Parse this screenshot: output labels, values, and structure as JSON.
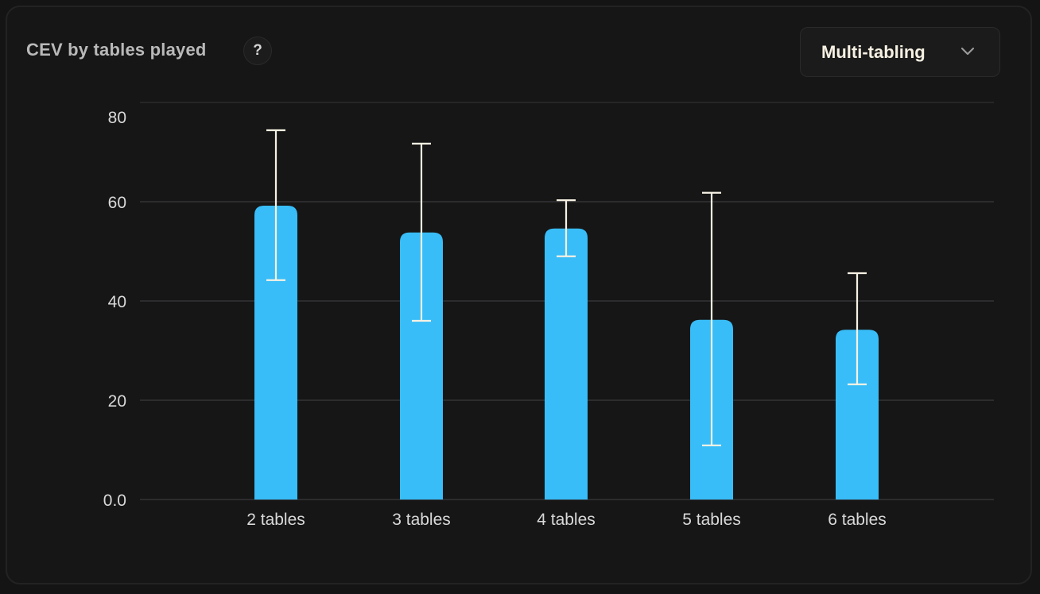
{
  "card": {
    "title": "CEV by tables played",
    "help_label": "?",
    "dropdown": {
      "selected": "Multi-tabling",
      "icon": "chevron-down-icon"
    }
  },
  "colors": {
    "background": "#161616",
    "bar": "#38bdf8",
    "error_bar": "#f6f1e3",
    "grid": "#2c2c2e",
    "text": "#d9d9d9"
  },
  "chart_data": {
    "type": "bar",
    "title": "CEV by tables played",
    "xlabel": "",
    "ylabel": "",
    "categories": [
      "2 tables",
      "3 tables",
      "4 tables",
      "5 tables",
      "6 tables"
    ],
    "values": [
      59.2,
      53.8,
      54.6,
      36.2,
      34.2
    ],
    "error_low": [
      44.2,
      36.0,
      49.0,
      10.9,
      23.2
    ],
    "error_high": [
      74.4,
      71.7,
      60.3,
      61.8,
      45.6
    ],
    "yticks": [
      "0.0",
      "20",
      "40",
      "60",
      "80"
    ],
    "ytick_values": [
      0,
      20,
      40,
      60,
      80
    ],
    "ylim": [
      0,
      80
    ],
    "grid": true,
    "legend": null
  }
}
